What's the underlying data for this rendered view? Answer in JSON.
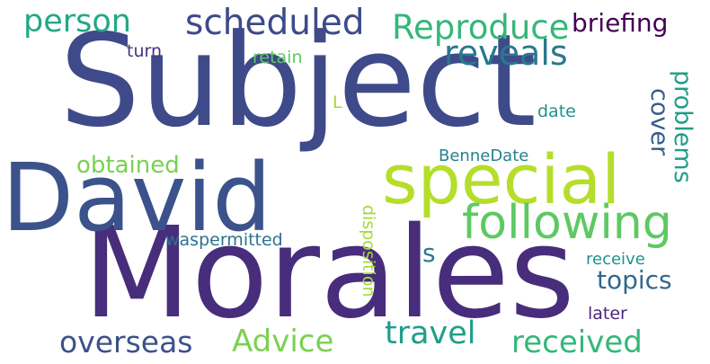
{
  "word_cloud": {
    "words": [
      {
        "text": "Subject",
        "color": "#3e4a89"
      },
      {
        "text": "Morales",
        "color": "#472d7b"
      },
      {
        "text": "David",
        "color": "#3b528b"
      },
      {
        "text": "special",
        "color": "#b5de2b"
      },
      {
        "text": "following",
        "color": "#5ec962"
      },
      {
        "text": "scheduled",
        "color": "#3e4a89"
      },
      {
        "text": "Reproduce",
        "color": "#35b779"
      },
      {
        "text": "person",
        "color": "#22a884"
      },
      {
        "text": "briefing",
        "color": "#440154"
      },
      {
        "text": "reveals",
        "color": "#2a788e"
      },
      {
        "text": "overseas",
        "color": "#3b528b"
      },
      {
        "text": "Advice",
        "color": "#7ad151"
      },
      {
        "text": "travel",
        "color": "#1f9e89"
      },
      {
        "text": "received",
        "color": "#35b779"
      },
      {
        "text": "topics",
        "color": "#31688e"
      },
      {
        "text": "obtained",
        "color": "#7ad151"
      },
      {
        "text": "cover",
        "color": "#365c8d"
      },
      {
        "text": "problems",
        "color": "#1f9e89"
      },
      {
        "text": "waspermitted",
        "color": "#2c728e"
      },
      {
        "text": "BenneDate",
        "color": "#26828e"
      },
      {
        "text": "disposition",
        "color": "#a5db36"
      },
      {
        "text": "retain",
        "color": "#5ec962"
      },
      {
        "text": "turn",
        "color": "#46337e"
      },
      {
        "text": "date",
        "color": "#21918c"
      },
      {
        "text": "receive",
        "color": "#21918c"
      },
      {
        "text": "later",
        "color": "#482878"
      },
      {
        "text": "s",
        "color": "#2a788e"
      },
      {
        "text": "L",
        "color": "#a0da39"
      }
    ]
  }
}
